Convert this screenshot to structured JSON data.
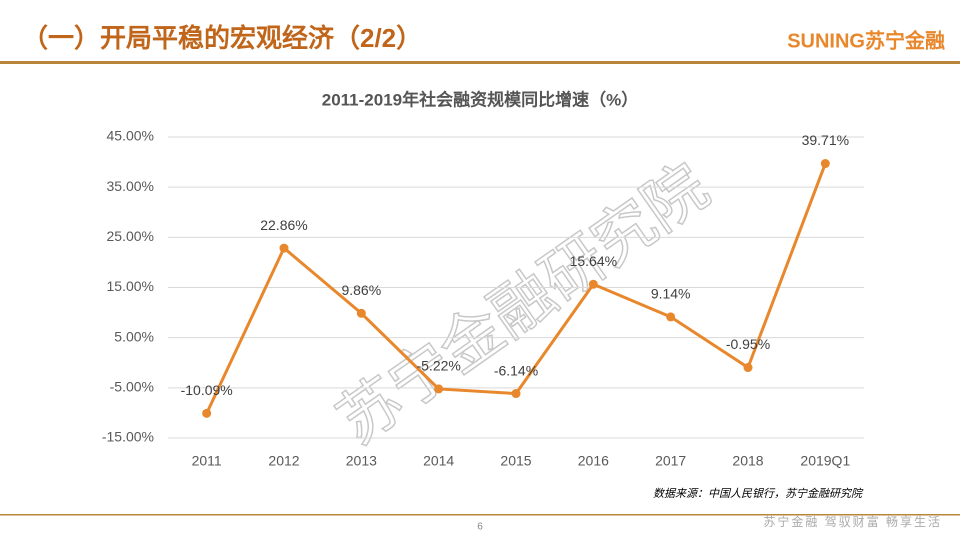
{
  "header": {
    "title": "（一）开局平稳的宏观经济（2/2）",
    "logo": "SUNING苏宁金融"
  },
  "chart_data": {
    "type": "line",
    "title": "2011-2019年社会融资规模同比增速（%）",
    "categories": [
      "2011",
      "2012",
      "2013",
      "2014",
      "2015",
      "2016",
      "2017",
      "2018",
      "2019Q1"
    ],
    "values": [
      -10.09,
      22.86,
      9.86,
      -5.22,
      -6.14,
      15.64,
      9.14,
      -0.95,
      39.71
    ],
    "value_labels": [
      "-10.09%",
      "22.86%",
      "9.86%",
      "-5.22%",
      "-6.14%",
      "15.64%",
      "9.14%",
      "-0.95%",
      "39.71%"
    ],
    "color": "#e8872c",
    "ylim": [
      -15,
      45
    ],
    "yticks": [
      {
        "value": -15,
        "label": "-15.00%"
      },
      {
        "value": -5,
        "label": "-5.00%"
      },
      {
        "value": 5,
        "label": "5.00%"
      },
      {
        "value": 15,
        "label": "15.00%"
      },
      {
        "value": 25,
        "label": "25.00%"
      },
      {
        "value": 35,
        "label": "35.00%"
      },
      {
        "value": 45,
        "label": "45.00%"
      }
    ],
    "grid": true
  },
  "source": "数据来源：中国人民银行，苏宁金融研究院",
  "watermark": "苏宁金融研究院",
  "footer": {
    "page": "6",
    "slogan": "苏宁金融 驾驭财富 畅享生活"
  }
}
